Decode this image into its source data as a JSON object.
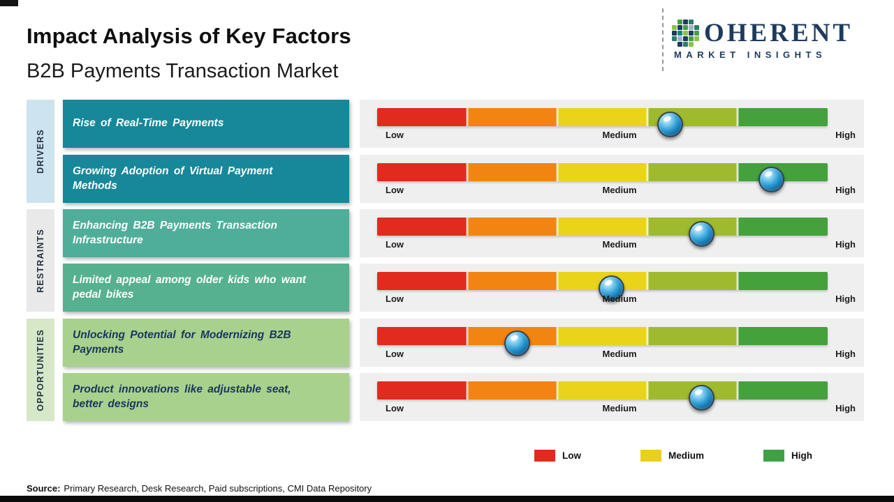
{
  "header": {
    "title": "Impact Analysis of Key Factors",
    "subtitle": "B2B Payments Transaction Market"
  },
  "logo": {
    "name": "COHERENT",
    "tagline": "MARKET INSIGHTS",
    "brand_color": "#1e3a5f",
    "mosaic_colors": [
      "none",
      "#43a047",
      "#1e3a5f",
      "#2e7d6d",
      "none",
      "#8bc34a",
      "#1e3a5f",
      "#43a047",
      "#9fb3c8",
      "#2e7d6d",
      "#1e3a5f",
      "#00897b",
      "#8bc34a",
      "#1e3a5f",
      "#43a047",
      "#2e7d6d",
      "#9fb3c8",
      "#1e3a5f",
      "#43a047",
      "#8bc34a",
      "none",
      "#1e3a5f",
      "#2e7d6d",
      "#8bc34a",
      "none"
    ]
  },
  "sidebar": {
    "groups": [
      {
        "label": "DRIVERS",
        "color": "#cde3f0"
      },
      {
        "label": "RESTRAINTS",
        "color": "#e9e9e9"
      },
      {
        "label": "OPPORTUNITIES",
        "color": "#d6e8c8"
      }
    ]
  },
  "scale": {
    "low": "Low",
    "medium": "Medium",
    "high": "High"
  },
  "rows": [
    {
      "group": "DRIVERS",
      "label": "Rise of Real-Time Payments",
      "box_color": "#17879a",
      "text_color": "#ffffff"
    },
    {
      "group": "DRIVERS",
      "label": "Growing Adoption of Virtual Payment Methods",
      "box_color": "#17879a",
      "text_color": "#ffffff"
    },
    {
      "group": "RESTRAINTS",
      "label": "Enhancing B2B Payments Transaction Infrastructure",
      "box_color": "#4fae99",
      "text_color": "#ffffff"
    },
    {
      "group": "RESTRAINTS",
      "label": "Limited appeal among older kids who want pedal bikes",
      "box_color": "#55b190",
      "text_color": "#ffffff"
    },
    {
      "group": "OPPORTUNITIES",
      "label": "Unlocking Potential for Modernizing B2B Payments",
      "box_color": "#a9d18e",
      "text_color": "#17365d"
    },
    {
      "group": "OPPORTUNITIES",
      "label": "Product innovations like adjustable seat, better designs",
      "box_color": "#a9d18e",
      "text_color": "#17365d"
    }
  ],
  "legend": [
    {
      "label": "Low",
      "color": "#e02b1e"
    },
    {
      "label": "Medium",
      "color": "#e8d01b"
    },
    {
      "label": "High",
      "color": "#3fa044"
    }
  ],
  "source": {
    "prefix": "Source:",
    "text": "Primary Research, Desk Research, Paid subscriptions, CMI Data Repository"
  },
  "chart_data": {
    "type": "scatter",
    "title": "Impact Analysis of Key Factors",
    "subtitle": "B2B Payments Transaction Market",
    "categories": [
      "Rise of Real-Time Payments",
      "Growing Adoption of Virtual Payment Methods",
      "Enhancing B2B Payments Transaction Infrastructure",
      "Limited appeal among older kids who want pedal bikes",
      "Unlocking Potential for Modernizing B2B Payments",
      "Product innovations like adjustable seat, better designs"
    ],
    "groups": [
      "Drivers",
      "Drivers",
      "Restraints",
      "Restraints",
      "Opportunities",
      "Opportunities"
    ],
    "values": [
      65,
      87.5,
      72,
      52,
      31,
      72
    ],
    "scale": {
      "range": [
        0,
        100
      ],
      "ticks": [
        "Low",
        "Medium",
        "High"
      ],
      "tick_positions": [
        0,
        50,
        100
      ]
    },
    "bar_palette": [
      "#e02b1e",
      "#f28411",
      "#ead41a",
      "#a0ba2f",
      "#44a13c"
    ],
    "marker_color": "#2e9fd6",
    "legend_position": "bottom",
    "grid": false
  }
}
